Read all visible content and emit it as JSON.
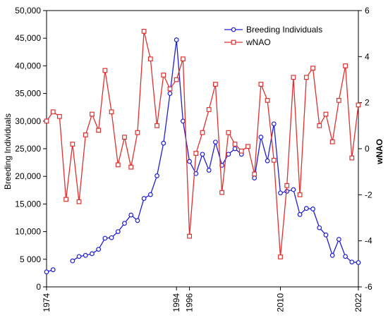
{
  "chart_data": {
    "type": "line",
    "title": "",
    "xlabel": "",
    "ylabel": "Breeding Individuals",
    "y2label": "wNAO",
    "xlim": [
      1974,
      2022
    ],
    "ylim": [
      0,
      50000
    ],
    "y2lim": [
      -6,
      6
    ],
    "xtick_labels": [
      "1974",
      "1994",
      "1996",
      "2010",
      "2022"
    ],
    "ytick_labels": [
      "0",
      "5 000",
      "10,000",
      "15,000",
      "20,000",
      "25,000",
      "30,000",
      "35,000",
      "40,000",
      "45,000",
      "50,000"
    ],
    "y2tick_labels": [
      "-6",
      "-4",
      "-2",
      "0",
      "2",
      "4",
      "6"
    ],
    "legend_position": "top-right",
    "grid": false,
    "series": [
      {
        "name": "Breeding Individuals",
        "axis": "left",
        "color": "#1f1fd6",
        "x": [
          1974,
          1975,
          null,
          1978,
          1979,
          1980,
          1981,
          1982,
          1983,
          1984,
          1985,
          1986,
          1987,
          1988,
          1989,
          1990,
          1991,
          1992,
          1993,
          1994,
          1995,
          1996,
          1997,
          1998,
          1999,
          2000,
          2001,
          2002,
          2003,
          2004,
          2005,
          2006,
          2007,
          2008,
          2009,
          2010,
          2011,
          2012,
          2013,
          2014,
          2015,
          2016,
          2017,
          2018,
          2019,
          2020,
          2021,
          2022
        ],
        "values": [
          2700,
          3100,
          null,
          4700,
          5500,
          5700,
          6000,
          6800,
          8800,
          8900,
          10000,
          11500,
          13000,
          12000,
          16000,
          16700,
          20100,
          26000,
          35000,
          44700,
          30000,
          22700,
          20500,
          24000,
          21100,
          26200,
          22000,
          24000,
          25000,
          24000,
          null,
          19700,
          27100,
          22800,
          29500,
          17000,
          17300,
          17600,
          13100,
          14200,
          14100,
          10700,
          9400,
          5700,
          8600,
          5500,
          4500,
          4400
        ]
      },
      {
        "name": "wNAO",
        "axis": "right",
        "color": "#e03030",
        "x": [
          1974,
          1975,
          1976,
          1977,
          1978,
          1979,
          1980,
          1981,
          1982,
          1983,
          1984,
          1985,
          1986,
          1987,
          1988,
          1989,
          1990,
          1991,
          1992,
          1993,
          1994,
          1995,
          1996,
          1997,
          1998,
          1999,
          2000,
          2001,
          2002,
          2003,
          2004,
          2005,
          2006,
          2007,
          2008,
          2009,
          2010,
          2011,
          2012,
          2013,
          2014,
          2015,
          2016,
          2017,
          2018,
          2019,
          2020,
          2021,
          2022
        ],
        "values": [
          1.2,
          1.6,
          1.4,
          -2.2,
          0.2,
          -2.3,
          0.6,
          1.5,
          0.8,
          3.4,
          1.6,
          -0.7,
          0.5,
          -0.8,
          0.7,
          5.1,
          3.9,
          1.0,
          3.2,
          2.6,
          3.0,
          3.9,
          -3.8,
          -0.2,
          0.7,
          1.7,
          2.8,
          -1.9,
          0.7,
          0.2,
          -0.1,
          0.1,
          -1.1,
          2.8,
          2.1,
          -0.5,
          -4.7,
          -1.6,
          3.1,
          -2.0,
          3.1,
          3.5,
          1.0,
          1.5,
          0.3,
          2.1,
          3.6,
          -0.4,
          1.9
        ]
      }
    ]
  }
}
